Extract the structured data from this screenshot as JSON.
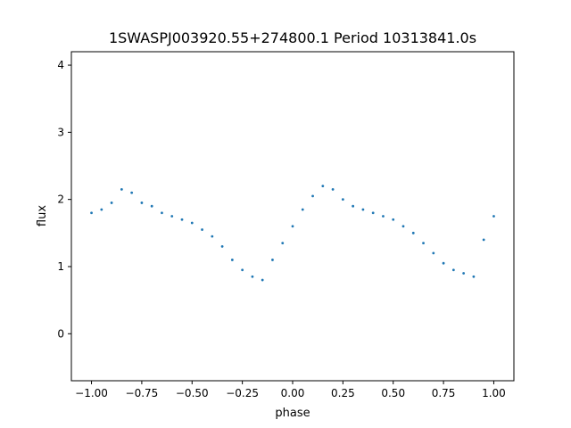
{
  "chart_data": {
    "type": "scatter",
    "title": "1SWASPJ003920.55+274800.1 Period 10313841.0s",
    "xlabel": "phase",
    "ylabel": "flux",
    "xlim": [
      -1.1,
      1.1
    ],
    "ylim": [
      -0.7,
      4.2
    ],
    "xticks": [
      -1.0,
      -0.75,
      -0.5,
      -0.25,
      0.0,
      0.25,
      0.5,
      0.75,
      1.0
    ],
    "xtick_labels": [
      "−1.00",
      "−0.75",
      "−0.50",
      "−0.25",
      "0.00",
      "0.25",
      "0.50",
      "0.75",
      "1.00"
    ],
    "yticks": [
      0,
      1,
      2,
      3,
      4
    ],
    "ytick_labels": [
      "0",
      "1",
      "2",
      "3",
      "4"
    ],
    "grid": false,
    "point_color": "#1f77b4",
    "series": [
      {
        "x": [
          -1.0,
          -0.95,
          -0.9,
          -0.85,
          -0.8,
          -0.75,
          -0.7,
          -0.65,
          -0.6,
          -0.55,
          -0.5,
          -0.45,
          -0.4,
          -0.35,
          -0.3,
          -0.25,
          -0.2,
          -0.15,
          -0.1,
          -0.05,
          0.0,
          0.05,
          0.1,
          0.15,
          0.2,
          0.25,
          0.3,
          0.35,
          0.4,
          0.45,
          0.5,
          0.55,
          0.6,
          0.65,
          0.7,
          0.75,
          0.8,
          0.85,
          0.9,
          0.95,
          1.0
        ],
        "y": [
          1.8,
          1.85,
          1.95,
          2.15,
          2.1,
          1.95,
          1.9,
          1.8,
          1.75,
          1.7,
          1.65,
          1.55,
          1.45,
          1.3,
          1.1,
          0.95,
          0.85,
          0.8,
          1.1,
          1.35,
          1.6,
          1.85,
          2.05,
          2.2,
          2.15,
          2.0,
          1.9,
          1.85,
          1.8,
          1.75,
          1.7,
          1.6,
          1.5,
          1.35,
          1.2,
          1.05,
          0.95,
          0.9,
          0.85,
          1.4,
          1.75
        ]
      }
    ]
  }
}
